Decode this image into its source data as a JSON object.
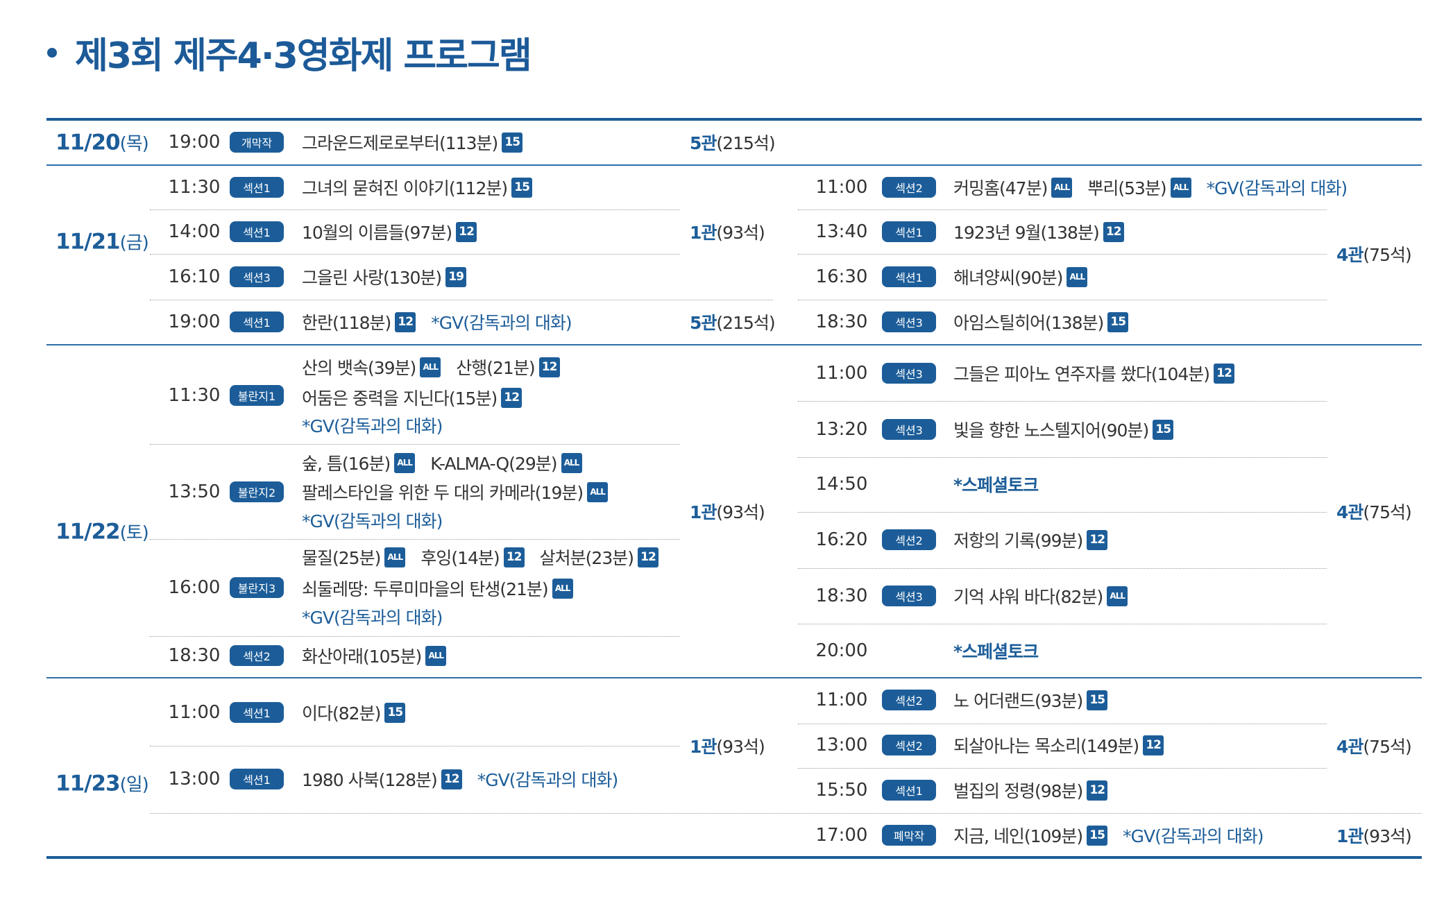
{
  "title": "제3회 제주4·3영화제 프로그램",
  "colors": {
    "accent": "#1c5d99",
    "text": "#333333"
  },
  "days": [
    {
      "date": "11/20",
      "dow": "(목)",
      "left": [
        {
          "time": "19:00",
          "badge": "개막작",
          "lines": [
            [
              {
                "film": "그라운드제로로부터(113분)",
                "rating": "15"
              }
            ]
          ]
        }
      ],
      "left_halls": [
        {
          "num": "5관",
          "seats": "(215석)"
        }
      ],
      "right": [],
      "right_halls": []
    },
    {
      "date": "11/21",
      "dow": "(금)",
      "left": [
        {
          "time": "11:30",
          "badge": "섹션1",
          "lines": [
            [
              {
                "film": "그녀의 묻혀진 이야기(112분)",
                "rating": "15"
              }
            ]
          ]
        },
        {
          "time": "14:00",
          "badge": "섹션1",
          "lines": [
            [
              {
                "film": "10월의 이름들(97분)",
                "rating": "12"
              }
            ]
          ]
        },
        {
          "time": "16:10",
          "badge": "섹션3",
          "lines": [
            [
              {
                "film": "그을린 사랑(130분)",
                "rating": "19"
              }
            ]
          ]
        },
        {
          "time": "19:00",
          "badge": "섹션1",
          "lines": [
            [
              {
                "film": "한란(118분)",
                "rating": "12"
              },
              {
                "gv": "*GV(감독과의 대화)"
              }
            ]
          ]
        }
      ],
      "left_halls": [
        {
          "num": "1관",
          "seats": "(93석)"
        },
        {
          "num": "5관",
          "seats": "(215석)"
        }
      ],
      "right": [
        {
          "time": "11:00",
          "badge": "섹션2",
          "lines": [
            [
              {
                "film": "커밍홈(47분)",
                "rating": "ALL"
              },
              {
                "film": "뿌리(53분)",
                "rating": "ALL"
              },
              {
                "gv": "*GV(감독과의 대화)"
              }
            ]
          ]
        },
        {
          "time": "13:40",
          "badge": "섹션1",
          "lines": [
            [
              {
                "film": "1923년 9월(138분)",
                "rating": "12"
              }
            ]
          ]
        },
        {
          "time": "16:30",
          "badge": "섹션1",
          "lines": [
            [
              {
                "film": "해녀양씨(90분)",
                "rating": "ALL"
              }
            ]
          ]
        },
        {
          "time": "18:30",
          "badge": "섹션3",
          "lines": [
            [
              {
                "film": "아임스틸히어(138분)",
                "rating": "15"
              }
            ]
          ]
        }
      ],
      "right_halls": [
        {
          "num": "4관",
          "seats": "(75석)"
        }
      ]
    },
    {
      "date": "11/22",
      "dow": "(토)",
      "left": [
        {
          "time": "11:30",
          "badge": "불란지1",
          "lines": [
            [
              {
                "film": "산의 뱃속(39분)",
                "rating": "ALL"
              },
              {
                "film": "산행(21분)",
                "rating": "12"
              }
            ],
            [
              {
                "film": "어둠은 중력을 지닌다(15분)",
                "rating": "12"
              }
            ],
            [
              {
                "gv": "*GV(감독과의 대화)"
              }
            ]
          ]
        },
        {
          "time": "13:50",
          "badge": "불란지2",
          "lines": [
            [
              {
                "film": "숲, 틈(16분)",
                "rating": "ALL"
              },
              {
                "film": "K-ALMA-Q(29분)",
                "rating": "ALL"
              }
            ],
            [
              {
                "film": "팔레스타인을 위한 두 대의 카메라(19분)",
                "rating": "ALL"
              }
            ],
            [
              {
                "gv": "*GV(감독과의 대화)"
              }
            ]
          ]
        },
        {
          "time": "16:00",
          "badge": "불란지3",
          "lines": [
            [
              {
                "film": "물질(25분)",
                "rating": "ALL"
              },
              {
                "film": "후잉(14분)",
                "rating": "12"
              },
              {
                "film": "살처분(23분)",
                "rating": "12"
              }
            ],
            [
              {
                "film": "쇠둘레땅: 두루미마을의 탄생(21분)",
                "rating": "ALL"
              }
            ],
            [
              {
                "gv": "*GV(감독과의 대화)"
              }
            ]
          ]
        },
        {
          "time": "18:30",
          "badge": "섹션2",
          "lines": [
            [
              {
                "film": "화산아래(105분)",
                "rating": "ALL"
              }
            ]
          ]
        }
      ],
      "left_halls": [
        {
          "num": "1관",
          "seats": "(93석)"
        }
      ],
      "right": [
        {
          "time": "11:00",
          "badge": "섹션3",
          "lines": [
            [
              {
                "film": "그들은 피아노 연주자를 쐈다(104분)",
                "rating": "12"
              }
            ]
          ]
        },
        {
          "time": "13:20",
          "badge": "섹션3",
          "lines": [
            [
              {
                "film": "빛을 향한 노스텔지어(90분)",
                "rating": "15"
              }
            ]
          ]
        },
        {
          "time": "14:50",
          "badge": "",
          "lines": [
            [
              {
                "special": "*스페셜토크"
              }
            ]
          ]
        },
        {
          "time": "16:20",
          "badge": "섹션2",
          "lines": [
            [
              {
                "film": "저항의 기록(99분)",
                "rating": "12"
              }
            ]
          ]
        },
        {
          "time": "18:30",
          "badge": "섹션3",
          "lines": [
            [
              {
                "film": "기억 샤워 바다(82분)",
                "rating": "ALL"
              }
            ]
          ]
        },
        {
          "time": "20:00",
          "badge": "",
          "lines": [
            [
              {
                "special": "*스페셜토크"
              }
            ]
          ]
        }
      ],
      "right_halls": [
        {
          "num": "4관",
          "seats": "(75석)"
        }
      ]
    },
    {
      "date": "11/23",
      "dow": "(일)",
      "left": [
        {
          "time": "11:00",
          "badge": "섹션1",
          "lines": [
            [
              {
                "film": "이다(82분)",
                "rating": "15"
              }
            ]
          ]
        },
        {
          "time": "13:00",
          "badge": "섹션1",
          "lines": [
            [
              {
                "film": "1980 사북(128분)",
                "rating": "12"
              },
              {
                "gv": "*GV(감독과의 대화)"
              }
            ]
          ]
        }
      ],
      "left_halls": [
        {
          "num": "1관",
          "seats": "(93석)"
        }
      ],
      "right": [
        {
          "time": "11:00",
          "badge": "섹션2",
          "lines": [
            [
              {
                "film": "노 어더랜드(93분)",
                "rating": "15"
              }
            ]
          ]
        },
        {
          "time": "13:00",
          "badge": "섹션2",
          "lines": [
            [
              {
                "film": "되살아나는 목소리(149분)",
                "rating": "12"
              }
            ]
          ]
        },
        {
          "time": "15:50",
          "badge": "섹션1",
          "lines": [
            [
              {
                "film": "벌집의 정령(98분)",
                "rating": "12"
              }
            ]
          ]
        },
        {
          "time": "17:00",
          "badge": "폐막작",
          "lines": [
            [
              {
                "film": "지금, 네인(109분)",
                "rating": "15"
              },
              {
                "gv": "*GV(감독과의 대화)"
              }
            ]
          ]
        }
      ],
      "right_halls": [
        {
          "num": "4관",
          "seats": "(75석)"
        },
        {
          "num": "1관",
          "seats": "(93석)"
        }
      ]
    }
  ]
}
